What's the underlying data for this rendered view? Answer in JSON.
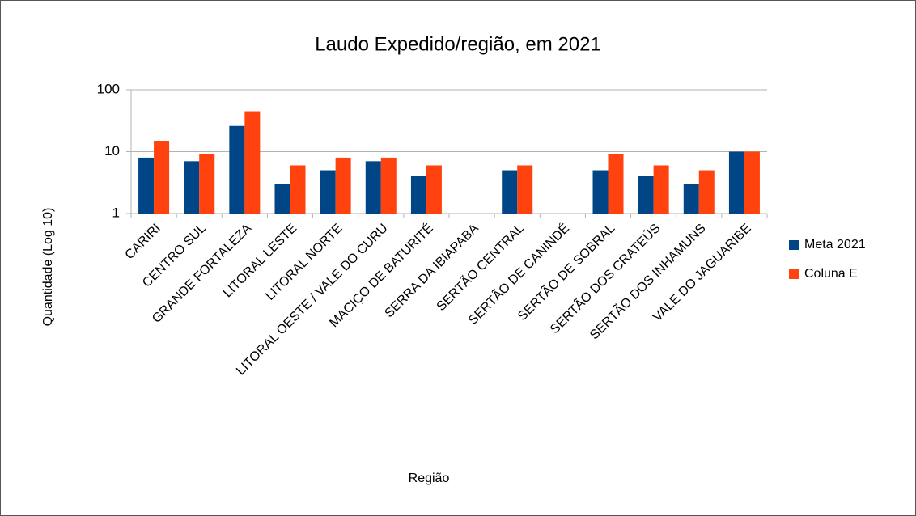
{
  "chart_data": {
    "type": "bar",
    "title": "Laudo Expedido/região, em 2021",
    "x_label": "Região",
    "y_label": "Quantidade (Log 10)",
    "categories": [
      "CARIRI",
      "CENTRO SUL",
      "GRANDE FORTALEZA",
      "LITORAL LESTE",
      "LITORAL NORTE",
      "LITORAL OESTE / VALE DO CURU",
      "MACIÇO DE BATURITÉ",
      "SERRA DA IBIAPABA",
      "SERTÃO CENTRAL",
      "SERTÃO DE CANINDÉ",
      "SERTÃO DE SOBRAL",
      "SERTÃO DOS CRATEÚS",
      "SERTÃO DOS INHAMUNS",
      "VALE DO JAGUARIBE"
    ],
    "series": [
      {
        "name": "Meta 2021",
        "color": "#004586",
        "values": [
          8,
          7,
          26,
          3,
          5,
          7,
          4,
          null,
          5,
          null,
          5,
          4,
          3,
          10
        ]
      },
      {
        "name": "Coluna E",
        "color": "#ff420e",
        "values": [
          15,
          9,
          45,
          6,
          8,
          8,
          6,
          null,
          6,
          null,
          9,
          6,
          5,
          10
        ]
      }
    ],
    "ylim": [
      1,
      100
    ],
    "yticks": [
      1,
      10,
      100
    ],
    "log_scale": true,
    "grid": true,
    "legend": "right"
  }
}
